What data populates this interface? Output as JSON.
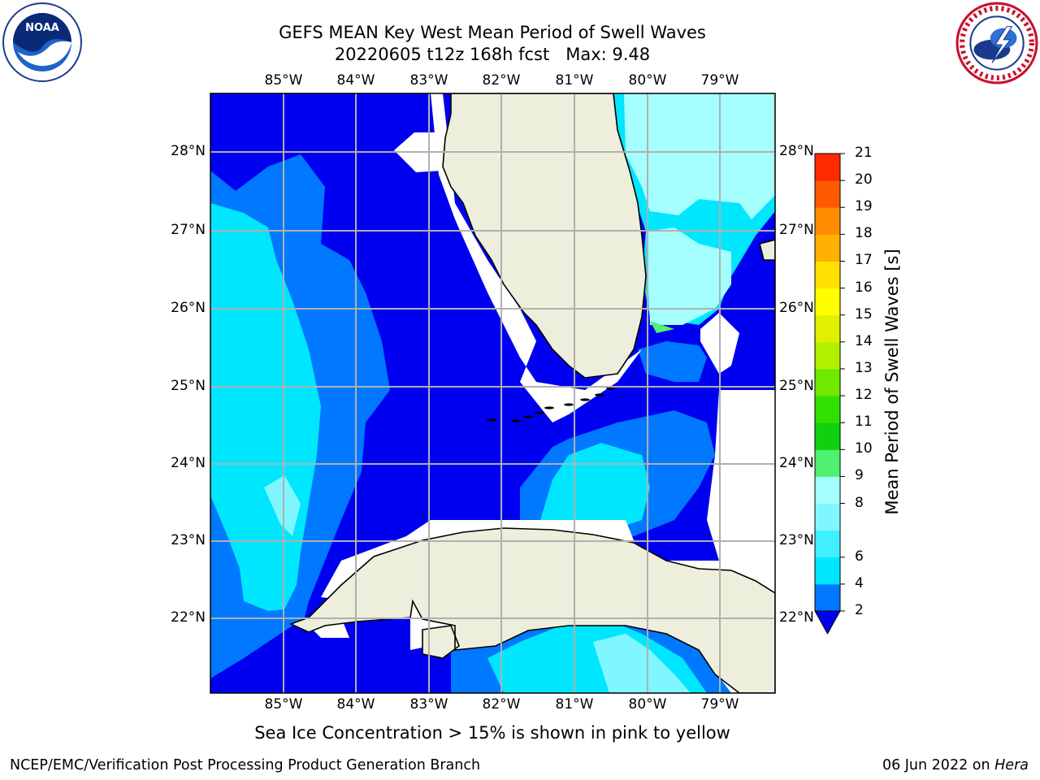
{
  "title": {
    "line1": "GEFS MEAN Key West Mean Period of Swell Waves",
    "line2": "20220605 t12z 168h fcst   Max: 9.48"
  },
  "map": {
    "lon_ticks": [
      "85°W",
      "84°W",
      "83°W",
      "82°W",
      "81°W",
      "80°W",
      "79°W"
    ],
    "lat_ticks": [
      "28°N",
      "27°N",
      "26°N",
      "25°N",
      "24°N",
      "23°N",
      "22°N"
    ],
    "colors": {
      "land": "#eeeedc",
      "no_data": "#ffffff",
      "grid": "#b0b0b0",
      "coast": "#000000"
    }
  },
  "colorbar": {
    "title": "Mean Period of Swell Waves [s]",
    "ticks": [
      "21",
      "20",
      "19",
      "18",
      "17",
      "16",
      "15",
      "14",
      "13",
      "12",
      "11",
      "10",
      "9",
      "8",
      "6",
      "4",
      "2"
    ],
    "levels": [
      2,
      4,
      6,
      7,
      8,
      9,
      10,
      11,
      12,
      13,
      14,
      15,
      16,
      17,
      18,
      19,
      20,
      21
    ],
    "colors": [
      "#0078ff",
      "#00e6ff",
      "#40f0ff",
      "#80f7ff",
      "#a6ffff",
      "#50f070",
      "#10d010",
      "#30e000",
      "#70e800",
      "#b0f000",
      "#e0f000",
      "#ffff00",
      "#ffe000",
      "#ffb000",
      "#ff8c00",
      "#ff5a00",
      "#ff2a00",
      "#ff0000"
    ],
    "under_color": "#0000f0"
  },
  "footnote": "Sea Ice Concentration > 15% is shown in pink to yellow",
  "credit": "NCEP/EMC/Verification Post Processing Product Generation Branch",
  "date": {
    "text": "06 Jun 2022 on ",
    "host": "Hera"
  }
}
